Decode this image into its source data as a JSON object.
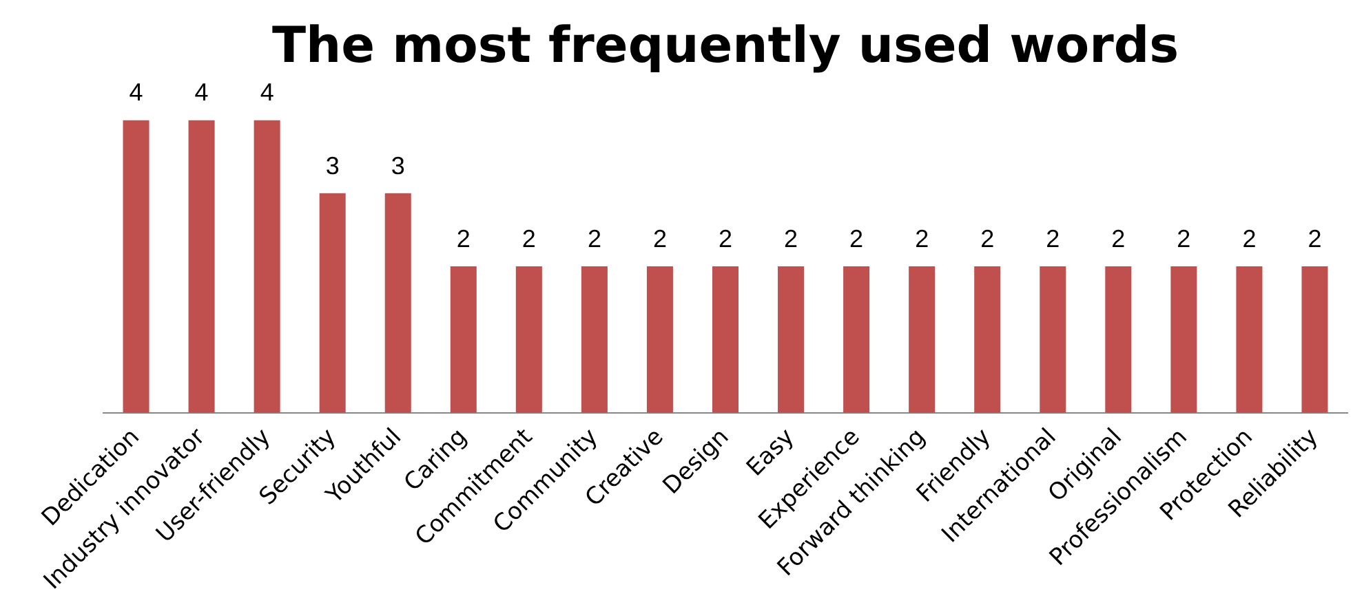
{
  "chart_data": {
    "type": "bar",
    "title": "The most frequently used words",
    "categories": [
      "Dedication",
      "Industry innovator",
      "User-friendly",
      "Security",
      "Youthful",
      "Caring",
      "Commitment",
      "Community",
      "Creative",
      "Design",
      "Easy",
      "Experience",
      "Forward thinking",
      "Friendly",
      "International",
      "Original",
      "Professionalism",
      "Protection",
      "Reliability"
    ],
    "values": [
      4,
      4,
      4,
      3,
      3,
      2,
      2,
      2,
      2,
      2,
      2,
      2,
      2,
      2,
      2,
      2,
      2,
      2,
      2
    ],
    "color": "#c0504d",
    "data_labels": true,
    "grid": false,
    "legend": false
  }
}
